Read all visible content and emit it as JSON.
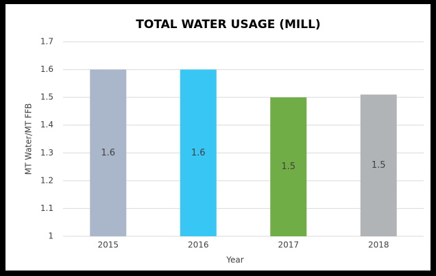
{
  "chart_data": {
    "type": "bar",
    "title": "TOTAL WATER USAGE (MILL)",
    "categories": [
      "2015",
      "2016",
      "2017",
      "2018"
    ],
    "values": [
      1.6,
      1.6,
      1.5,
      1.51
    ],
    "value_labels": [
      "1.6",
      "1.6",
      "1.5",
      "1.5"
    ],
    "colors": [
      "#aab6c9",
      "#38c6f4",
      "#70ad47",
      "#b1b4b6"
    ],
    "xlabel": "Year",
    "ylabel": "MT Water/MT FFB",
    "ylim": [
      1,
      1.7
    ],
    "yticks": [
      1,
      1.1,
      1.2,
      1.3,
      1.4,
      1.5,
      1.6,
      1.7
    ],
    "grid": true
  }
}
